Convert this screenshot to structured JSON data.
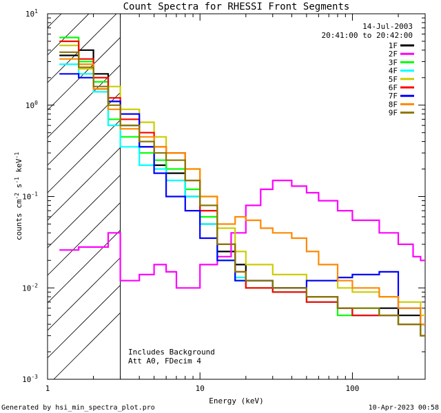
{
  "chart_data": {
    "type": "line",
    "title": "Count Spectra for RHESSI Front Segments",
    "xlabel": "Energy (keV)",
    "ylabel": "counts cm",
    "ylabel_parts": [
      "counts cm",
      "-2",
      " s",
      "-1",
      " keV",
      "-1"
    ],
    "xscale": "log",
    "yscale": "log",
    "xlim": [
      1,
      300
    ],
    "ylim": [
      0.001,
      10
    ],
    "x_ticks": [
      {
        "value": 1,
        "label": "1"
      },
      {
        "value": 10,
        "label": "10"
      },
      {
        "value": 100,
        "label": "100"
      }
    ],
    "y_ticks": [
      {
        "value": 0.001,
        "base": "10",
        "exp": "-3"
      },
      {
        "value": 0.01,
        "base": "10",
        "exp": "-2"
      },
      {
        "value": 0.1,
        "base": "10",
        "exp": "-1"
      },
      {
        "value": 1,
        "base": "10",
        "exp": "0"
      },
      {
        "value": 10,
        "base": "10",
        "exp": "1"
      }
    ],
    "date": "14-Jul-2003",
    "time_range": "20:41:00 to 20:42:00",
    "shaded_region": {
      "xmin": 1,
      "xmax": 3
    },
    "annotations": [
      "Includes Background",
      "Att A0, FDecim 4"
    ],
    "series": [
      {
        "name": "1F",
        "color": "#000000",
        "points": [
          [
            1.3,
            3.5
          ],
          [
            1.6,
            4.0
          ],
          [
            2.0,
            2.2
          ],
          [
            2.5,
            1.1
          ],
          [
            3,
            0.6
          ],
          [
            4,
            0.35
          ],
          [
            5,
            0.22
          ],
          [
            6,
            0.18
          ],
          [
            8,
            0.1
          ],
          [
            10,
            0.05
          ],
          [
            13,
            0.025
          ],
          [
            17,
            0.018
          ],
          [
            20,
            0.012
          ],
          [
            30,
            0.01
          ],
          [
            50,
            0.008
          ],
          [
            80,
            0.006
          ],
          [
            100,
            0.005
          ],
          [
            150,
            0.006
          ],
          [
            200,
            0.005
          ],
          [
            280,
            0.004
          ]
        ]
      },
      {
        "name": "2F",
        "color": "#ff00ff",
        "points": [
          [
            1.3,
            0.026
          ],
          [
            1.6,
            0.028
          ],
          [
            2.0,
            0.028
          ],
          [
            2.5,
            0.04
          ],
          [
            3,
            0.012
          ],
          [
            4,
            0.014
          ],
          [
            5,
            0.018
          ],
          [
            6,
            0.015
          ],
          [
            7,
            0.01
          ],
          [
            10,
            0.018
          ],
          [
            13,
            0.022
          ],
          [
            16,
            0.04
          ],
          [
            20,
            0.08
          ],
          [
            25,
            0.12
          ],
          [
            30,
            0.15
          ],
          [
            40,
            0.13
          ],
          [
            50,
            0.11
          ],
          [
            60,
            0.09
          ],
          [
            80,
            0.07
          ],
          [
            100,
            0.055
          ],
          [
            150,
            0.04
          ],
          [
            200,
            0.03
          ],
          [
            250,
            0.022
          ],
          [
            280,
            0.02
          ]
        ]
      },
      {
        "name": "3F",
        "color": "#00ff00",
        "points": [
          [
            1.3,
            5.5
          ],
          [
            1.6,
            3.0
          ],
          [
            2.0,
            1.8
          ],
          [
            2.5,
            0.7
          ],
          [
            3,
            0.45
          ],
          [
            4,
            0.3
          ],
          [
            5,
            0.25
          ],
          [
            6,
            0.2
          ],
          [
            8,
            0.12
          ],
          [
            10,
            0.06
          ],
          [
            13,
            0.02
          ],
          [
            17,
            0.012
          ],
          [
            20,
            0.01
          ],
          [
            30,
            0.009
          ],
          [
            50,
            0.007
          ],
          [
            80,
            0.005
          ],
          [
            100,
            0.006
          ],
          [
            150,
            0.005
          ],
          [
            200,
            0.004
          ],
          [
            280,
            0.003
          ]
        ]
      },
      {
        "name": "4F",
        "color": "#00ffff",
        "points": [
          [
            1.3,
            2.8
          ],
          [
            1.6,
            2.2
          ],
          [
            2.0,
            1.4
          ],
          [
            2.5,
            0.6
          ],
          [
            3,
            0.35
          ],
          [
            4,
            0.22
          ],
          [
            5,
            0.2
          ],
          [
            6,
            0.15
          ],
          [
            8,
            0.1
          ],
          [
            10,
            0.05
          ],
          [
            13,
            0.02
          ],
          [
            17,
            0.013
          ],
          [
            20,
            0.012
          ],
          [
            30,
            0.009
          ],
          [
            50,
            0.007
          ],
          [
            80,
            0.006
          ],
          [
            100,
            0.005
          ],
          [
            150,
            0.005
          ],
          [
            200,
            0.004
          ],
          [
            280,
            0.003
          ]
        ]
      },
      {
        "name": "5F",
        "color": "#cccc00",
        "points": [
          [
            1.3,
            4.5
          ],
          [
            1.6,
            2.5
          ],
          [
            2.0,
            2.0
          ],
          [
            2.5,
            1.6
          ],
          [
            3,
            0.9
          ],
          [
            4,
            0.65
          ],
          [
            5,
            0.45
          ],
          [
            6,
            0.3
          ],
          [
            8,
            0.2
          ],
          [
            10,
            0.1
          ],
          [
            13,
            0.045
          ],
          [
            17,
            0.025
          ],
          [
            20,
            0.018
          ],
          [
            30,
            0.014
          ],
          [
            50,
            0.012
          ],
          [
            80,
            0.01
          ],
          [
            100,
            0.009
          ],
          [
            150,
            0.008
          ],
          [
            200,
            0.007
          ],
          [
            280,
            0.005
          ]
        ]
      },
      {
        "name": "6F",
        "color": "#ff0000",
        "points": [
          [
            1.3,
            5.0
          ],
          [
            1.6,
            3.2
          ],
          [
            2.0,
            2.0
          ],
          [
            2.5,
            1.2
          ],
          [
            3,
            0.7
          ],
          [
            4,
            0.5
          ],
          [
            5,
            0.35
          ],
          [
            6,
            0.3
          ],
          [
            8,
            0.15
          ],
          [
            10,
            0.07
          ],
          [
            13,
            0.03
          ],
          [
            17,
            0.015
          ],
          [
            20,
            0.01
          ],
          [
            30,
            0.009
          ],
          [
            50,
            0.007
          ],
          [
            80,
            0.006
          ],
          [
            100,
            0.005
          ],
          [
            150,
            0.005
          ],
          [
            200,
            0.004
          ],
          [
            280,
            0.003
          ]
        ]
      },
      {
        "name": "7F",
        "color": "#0000ff",
        "points": [
          [
            1.3,
            2.2
          ],
          [
            1.6,
            2.0
          ],
          [
            2.0,
            1.5
          ],
          [
            2.5,
            1.1
          ],
          [
            3,
            0.8
          ],
          [
            4,
            0.35
          ],
          [
            5,
            0.18
          ],
          [
            6,
            0.1
          ],
          [
            8,
            0.07
          ],
          [
            10,
            0.035
          ],
          [
            13,
            0.02
          ],
          [
            17,
            0.012
          ],
          [
            20,
            0.012
          ],
          [
            30,
            0.01
          ],
          [
            50,
            0.012
          ],
          [
            80,
            0.013
          ],
          [
            100,
            0.014
          ],
          [
            150,
            0.015
          ],
          [
            200,
            0.006
          ],
          [
            280,
            0.004
          ]
        ]
      },
      {
        "name": "8F",
        "color": "#ff8800",
        "points": [
          [
            1.3,
            3.2
          ],
          [
            1.6,
            2.8
          ],
          [
            2.0,
            1.5
          ],
          [
            2.5,
            0.9
          ],
          [
            3,
            0.55
          ],
          [
            4,
            0.45
          ],
          [
            5,
            0.35
          ],
          [
            6,
            0.3
          ],
          [
            8,
            0.2
          ],
          [
            10,
            0.1
          ],
          [
            13,
            0.05
          ],
          [
            17,
            0.06
          ],
          [
            20,
            0.055
          ],
          [
            25,
            0.045
          ],
          [
            30,
            0.04
          ],
          [
            40,
            0.035
          ],
          [
            50,
            0.025
          ],
          [
            60,
            0.018
          ],
          [
            80,
            0.012
          ],
          [
            100,
            0.01
          ],
          [
            150,
            0.008
          ],
          [
            200,
            0.006
          ],
          [
            280,
            0.004
          ]
        ]
      },
      {
        "name": "9F",
        "color": "#8b7500",
        "points": [
          [
            1.3,
            3.8
          ],
          [
            1.6,
            2.6
          ],
          [
            2.0,
            1.6
          ],
          [
            2.5,
            1.0
          ],
          [
            3,
            0.6
          ],
          [
            4,
            0.4
          ],
          [
            5,
            0.3
          ],
          [
            6,
            0.25
          ],
          [
            8,
            0.15
          ],
          [
            10,
            0.08
          ],
          [
            13,
            0.03
          ],
          [
            17,
            0.015
          ],
          [
            20,
            0.012
          ],
          [
            30,
            0.01
          ],
          [
            50,
            0.008
          ],
          [
            80,
            0.006
          ],
          [
            100,
            0.006
          ],
          [
            150,
            0.005
          ],
          [
            200,
            0.004
          ],
          [
            280,
            0.003
          ]
        ]
      }
    ]
  },
  "footer": {
    "generated_by": "Generated by hsi_min_spectra_plot.pro",
    "generated_on": "10-Apr-2023 00:58"
  }
}
